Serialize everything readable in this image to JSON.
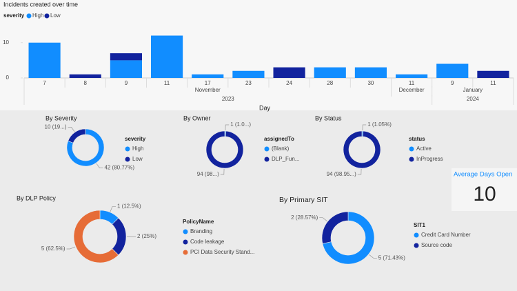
{
  "chart_data": [
    {
      "type": "bar",
      "stacked": true,
      "title": "Incidents created over time",
      "legend_title": "severity",
      "x_label": "Day",
      "categories": [
        "7",
        "8",
        "9",
        "11",
        "17",
        "23",
        "24",
        "28",
        "30",
        "11",
        "9",
        "11"
      ],
      "months": [
        "November",
        null,
        null,
        null,
        null,
        null,
        null,
        null,
        null,
        "December",
        "January",
        null
      ],
      "years": [
        "2023",
        null,
        null,
        null,
        null,
        null,
        null,
        null,
        null,
        null,
        "2024",
        null
      ],
      "series": [
        {
          "name": "High",
          "color": "#118dff",
          "values": [
            10,
            0,
            5,
            12,
            1,
            2,
            0,
            3,
            3,
            1,
            4,
            0
          ]
        },
        {
          "name": "Low",
          "color": "#12239e",
          "values": [
            0,
            1,
            2,
            0,
            0,
            0,
            3,
            0,
            0,
            0,
            0,
            2
          ]
        }
      ],
      "ylim": [
        0,
        12.5
      ],
      "yticks": [
        0,
        10
      ]
    },
    {
      "type": "donut",
      "title": "By Severity",
      "legend_title": "severity",
      "categories": [
        "High",
        "Low"
      ],
      "values": [
        42,
        10
      ],
      "value_labels": [
        "42 (80.77%)",
        "10 (19...)"
      ],
      "colors": [
        "#118dff",
        "#12239e"
      ]
    },
    {
      "type": "donut",
      "title": "By Owner",
      "legend_title": "assignedTo",
      "categories": [
        "(Blank)",
        "DLP_Fun..."
      ],
      "values": [
        1,
        94
      ],
      "value_labels": [
        "1 (1.0...)",
        "94 (98...)"
      ],
      "colors": [
        "#118dff",
        "#12239e"
      ]
    },
    {
      "type": "donut",
      "title": "By Status",
      "legend_title": "status",
      "categories": [
        "Active",
        "InProgress"
      ],
      "values": [
        1,
        94
      ],
      "value_labels": [
        "1 (1.05%)",
        "94 (98.95...)"
      ],
      "colors": [
        "#118dff",
        "#12239e"
      ]
    },
    {
      "type": "card",
      "title": "Average Days Open",
      "value": 10
    },
    {
      "type": "donut",
      "title": "By DLP Policy",
      "legend_title": "PolicyName",
      "categories": [
        "Branding",
        "Code leakage",
        "PCI Data Security Stand..."
      ],
      "values": [
        1,
        2,
        5
      ],
      "value_labels": [
        "1 (12.5%)",
        "2 (25%)",
        "5 (62.5%)"
      ],
      "colors": [
        "#118dff",
        "#12239e",
        "#e66c37"
      ]
    },
    {
      "type": "donut",
      "title": "By Primary SIT",
      "legend_title": "SIT1",
      "categories": [
        "Credit Card Number",
        "Source code"
      ],
      "values": [
        5,
        2
      ],
      "value_labels": [
        "5 (71.43%)",
        "2 (28.57%)"
      ],
      "colors": [
        "#118dff",
        "#12239e"
      ]
    }
  ]
}
